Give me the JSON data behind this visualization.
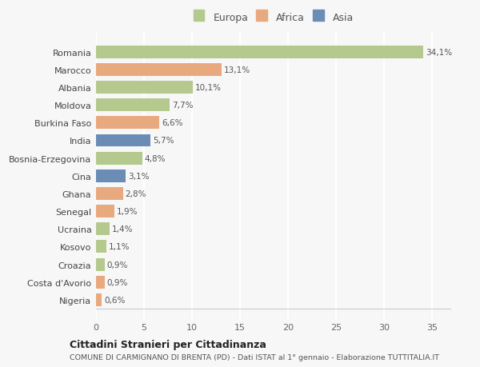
{
  "countries": [
    "Romania",
    "Marocco",
    "Albania",
    "Moldova",
    "Burkina Faso",
    "India",
    "Bosnia-Erzegovina",
    "Cina",
    "Ghana",
    "Senegal",
    "Ucraina",
    "Kosovo",
    "Croazia",
    "Costa d'Avorio",
    "Nigeria"
  ],
  "values": [
    34.1,
    13.1,
    10.1,
    7.7,
    6.6,
    5.7,
    4.8,
    3.1,
    2.8,
    1.9,
    1.4,
    1.1,
    0.9,
    0.9,
    0.6
  ],
  "continents": [
    "Europa",
    "Africa",
    "Europa",
    "Europa",
    "Africa",
    "Asia",
    "Europa",
    "Asia",
    "Africa",
    "Africa",
    "Europa",
    "Europa",
    "Europa",
    "Africa",
    "Africa"
  ],
  "labels": [
    "34,1%",
    "13,1%",
    "10,1%",
    "7,7%",
    "6,6%",
    "5,7%",
    "4,8%",
    "3,1%",
    "2,8%",
    "1,9%",
    "1,4%",
    "1,1%",
    "0,9%",
    "0,9%",
    "0,6%"
  ],
  "colors": {
    "Europa": "#b5c98e",
    "Africa": "#e8a97e",
    "Asia": "#6b8db5"
  },
  "bg_color": "#f7f7f7",
  "grid_color": "#ffffff",
  "title": "Cittadini Stranieri per Cittadinanza",
  "subtitle": "COMUNE DI CARMIGNANO DI BRENTA (PD) - Dati ISTAT al 1° gennaio - Elaborazione TUTTITALIA.IT",
  "xlim": [
    0,
    37
  ],
  "xticks": [
    0,
    5,
    10,
    15,
    20,
    25,
    30,
    35
  ]
}
